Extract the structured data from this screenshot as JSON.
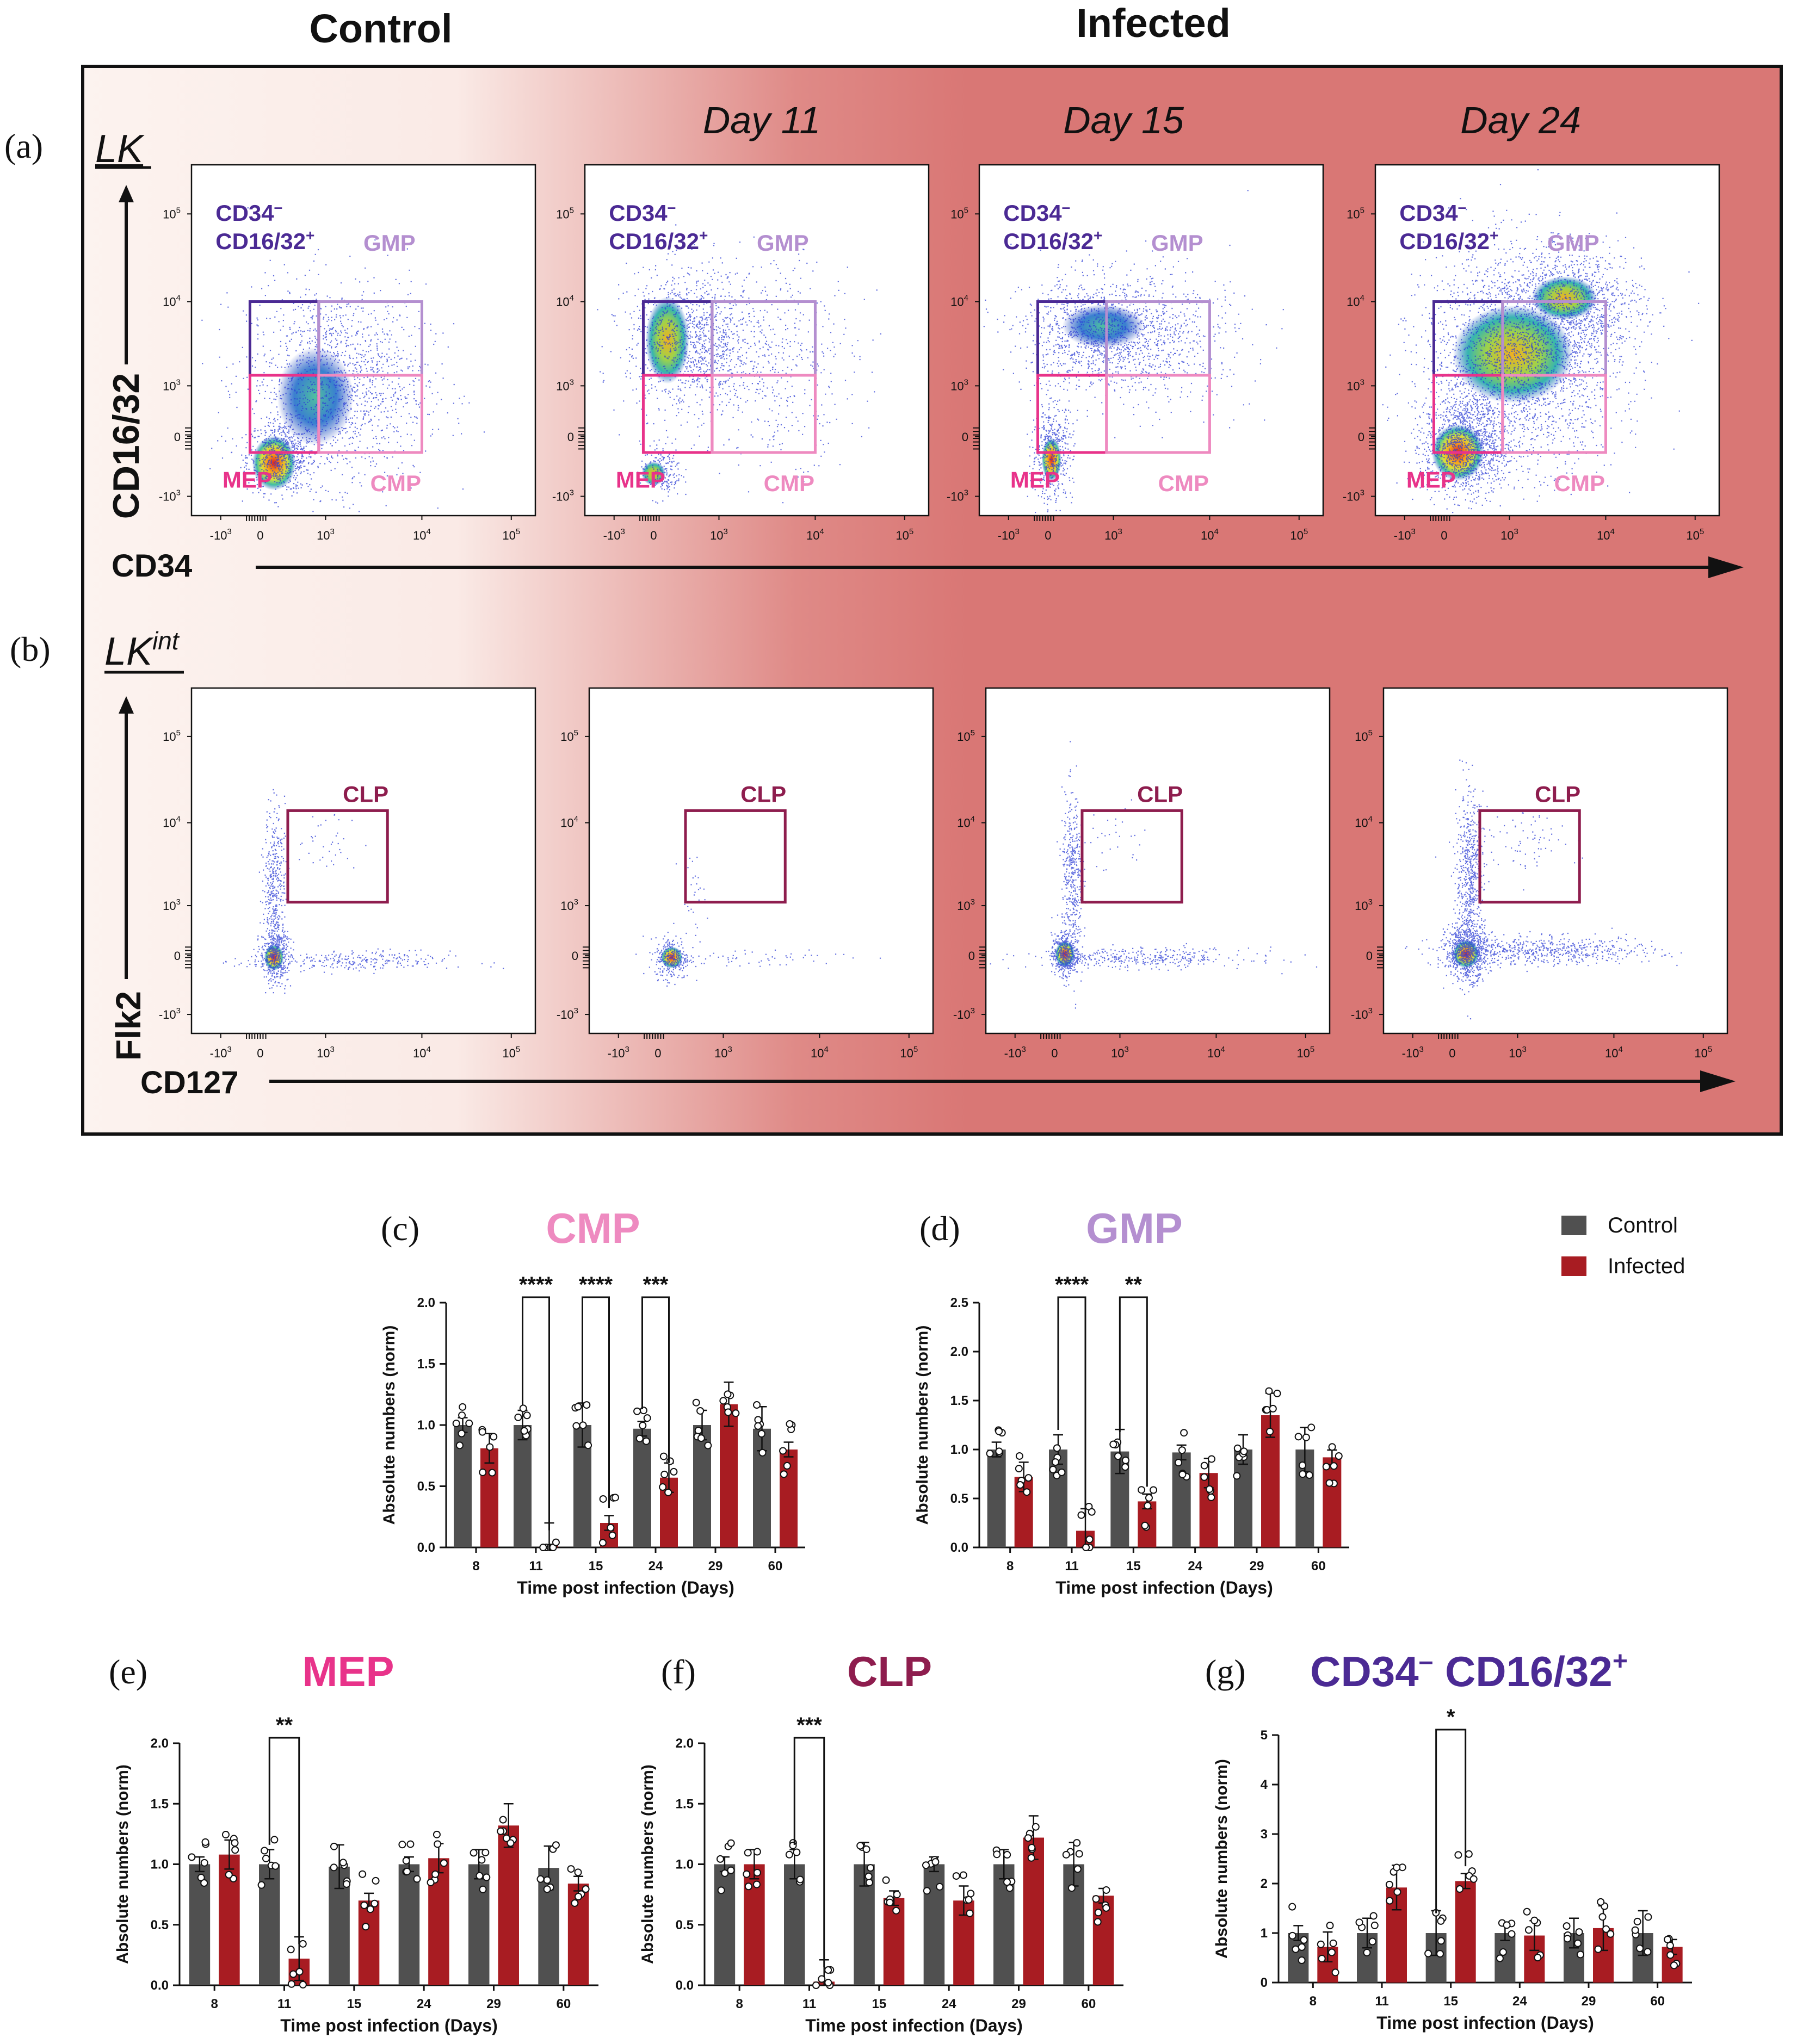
{
  "header": {
    "control": "Control",
    "infected": "Infected"
  },
  "panel_labels": {
    "a": "(a)",
    "b": "(b)",
    "c": "(c)",
    "d": "(d)",
    "e": "(e)",
    "f": "(f)",
    "g": "(g)"
  },
  "flow": {
    "row_a": {
      "population": "LK",
      "y_axis": "CD16/32",
      "x_axis": "CD34",
      "timepoints": [
        "",
        "Day 11",
        "Day 15",
        "Day 24"
      ],
      "gates": {
        "cd34": "CD34",
        "neg": "–",
        "cd1632": "CD16/32",
        "pos": "+",
        "gmp": "GMP",
        "mep": "MEP",
        "cmp": "CMP"
      }
    },
    "row_b": {
      "population": "LK",
      "population_sup": "int",
      "y_axis": "Flk2",
      "x_axis": "CD127",
      "gates": {
        "clp": "CLP"
      }
    },
    "ticks": {
      "t5": "10",
      "t4": "10",
      "t3": "10",
      "t0": "0",
      "tm3": "-10",
      "e5": "5",
      "e4": "4",
      "e3": "3"
    }
  },
  "legend": {
    "control": "Control",
    "infected": "Infected"
  },
  "colors": {
    "control": "#505050",
    "infected": "#a81c22",
    "cmp": "#ee8ac0",
    "gmp": "#b48fd0",
    "mep": "#e8338a",
    "clp": "#8e1d4e",
    "cd34neg": "#4b2a94",
    "bg_infected": "#d97775"
  },
  "chart_data": [
    {
      "id": "c",
      "type": "bar",
      "title": "CMP",
      "title_color": "#ee8ac0",
      "categories": [
        "8",
        "11",
        "15",
        "24",
        "29",
        "60"
      ],
      "xlabel": "Time post infection (Days)",
      "ylabel": "Absolute numbers (norm)",
      "ylim": [
        0,
        2.0
      ],
      "yticks": [
        "0.0",
        "0.5",
        "1.0",
        "1.5",
        "2.0"
      ],
      "series": [
        {
          "name": "Control",
          "values": [
            1.0,
            1.0,
            1.0,
            0.97,
            1.0,
            0.97
          ]
        },
        {
          "name": "Infected",
          "values": [
            0.81,
            0.02,
            0.2,
            0.57,
            1.17,
            0.8
          ]
        }
      ],
      "significance": [
        {
          "category": "11",
          "label": "****"
        },
        {
          "category": "15",
          "label": "****"
        },
        {
          "category": "24",
          "label": "***"
        }
      ]
    },
    {
      "id": "d",
      "type": "bar",
      "title": "GMP",
      "title_color": "#b48fd0",
      "categories": [
        "8",
        "11",
        "15",
        "24",
        "29",
        "60"
      ],
      "xlabel": "Time post infection (Days)",
      "ylabel": "Absolute numbers (norm)",
      "ylim": [
        0,
        2.5
      ],
      "yticks": [
        "0.0",
        "0.5",
        "1.0",
        "1.5",
        "2.0",
        "2.5"
      ],
      "series": [
        {
          "name": "Control",
          "values": [
            1.0,
            1.0,
            0.98,
            0.97,
            1.0,
            1.0
          ]
        },
        {
          "name": "Infected",
          "values": [
            0.72,
            0.17,
            0.47,
            0.76,
            1.35,
            0.92
          ]
        }
      ],
      "significance": [
        {
          "category": "11",
          "label": "****"
        },
        {
          "category": "15",
          "label": "**"
        }
      ]
    },
    {
      "id": "e",
      "type": "bar",
      "title": "MEP",
      "title_color": "#e8338a",
      "categories": [
        "8",
        "11",
        "15",
        "24",
        "29",
        "60"
      ],
      "xlabel": "Time post infection (Days)",
      "ylabel": "Absolute numbers (norm)",
      "ylim": [
        0,
        2.0
      ],
      "yticks": [
        "0.0",
        "0.5",
        "1.0",
        "1.5",
        "2.0"
      ],
      "series": [
        {
          "name": "Control",
          "values": [
            1.0,
            1.0,
            0.98,
            1.0,
            1.0,
            0.97
          ]
        },
        {
          "name": "Infected",
          "values": [
            1.08,
            0.22,
            0.7,
            1.05,
            1.32,
            0.84
          ]
        }
      ],
      "significance": [
        {
          "category": "11",
          "label": "**"
        }
      ]
    },
    {
      "id": "f",
      "type": "bar",
      "title": "CLP",
      "title_color": "#8e1d4e",
      "categories": [
        "8",
        "11",
        "15",
        "24",
        "29",
        "60"
      ],
      "xlabel": "Time post infection (Days)",
      "ylabel": "Absolute numbers (norm)",
      "ylim": [
        0,
        2.0
      ],
      "yticks": [
        "0.0",
        "0.5",
        "1.0",
        "1.5",
        "2.0"
      ],
      "series": [
        {
          "name": "Control",
          "values": [
            1.0,
            1.0,
            1.0,
            1.0,
            1.0,
            1.0
          ]
        },
        {
          "name": "Infected",
          "values": [
            1.0,
            0.03,
            0.72,
            0.7,
            1.22,
            0.74
          ]
        }
      ],
      "significance": [
        {
          "category": "11",
          "label": "***"
        }
      ]
    },
    {
      "id": "g",
      "type": "bar",
      "title": "CD34",
      "title_sup1": "–",
      "title_part2": " CD16/32",
      "title_sup2": "+",
      "title_color": "#4b2a94",
      "categories": [
        "8",
        "11",
        "15",
        "24",
        "29",
        "60"
      ],
      "xlabel": "Time post infection (Days)",
      "ylabel": "Absolute numbers (norm)",
      "ylim": [
        0,
        5
      ],
      "yticks": [
        "0",
        "1",
        "2",
        "3",
        "4",
        "5"
      ],
      "series": [
        {
          "name": "Control",
          "values": [
            1.0,
            1.0,
            1.0,
            1.0,
            1.0,
            1.0
          ]
        },
        {
          "name": "Infected",
          "values": [
            0.72,
            1.92,
            2.05,
            0.95,
            1.1,
            0.72
          ]
        }
      ],
      "significance": [
        {
          "category": "15",
          "label": "*"
        }
      ]
    }
  ]
}
